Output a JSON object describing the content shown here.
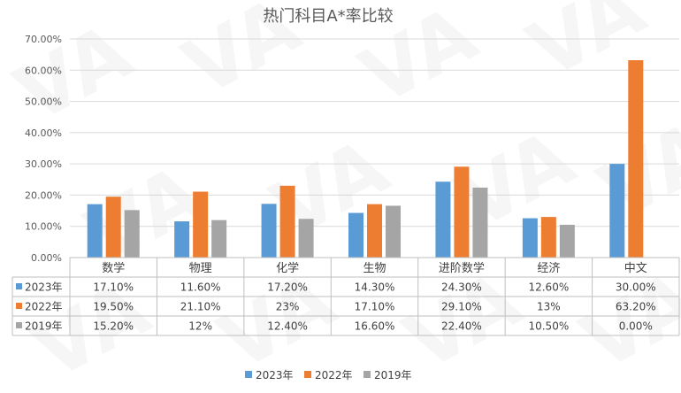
{
  "chart_data": {
    "type": "bar",
    "title": "热门科目A*率比较",
    "categories": [
      "数学",
      "物理",
      "化学",
      "生物",
      "进阶数学",
      "经济",
      "中文"
    ],
    "ylim": [
      0,
      70
    ],
    "y_ticks": [
      "0.00%",
      "10.00%",
      "20.00%",
      "30.00%",
      "40.00%",
      "50.00%",
      "60.00%",
      "70.00%"
    ],
    "grid": true,
    "legend_position": "bottom",
    "series": [
      {
        "name": "2023年",
        "color": "#5b9bd5",
        "values": [
          17.1,
          11.6,
          17.2,
          14.3,
          24.3,
          12.6,
          30.0
        ],
        "labels": [
          "17.10%",
          "11.60%",
          "17.20%",
          "14.30%",
          "24.30%",
          "12.60%",
          "30.00%"
        ]
      },
      {
        "name": "2022年",
        "color": "#ed7d31",
        "values": [
          19.5,
          21.1,
          23.0,
          17.1,
          29.1,
          13.0,
          63.2
        ],
        "labels": [
          "19.50%",
          "21.10%",
          "23%",
          "17.10%",
          "29.10%",
          "13%",
          "63.20%"
        ]
      },
      {
        "name": "2019年",
        "color": "#a5a5a5",
        "values": [
          15.2,
          12.0,
          12.4,
          16.6,
          22.4,
          10.5,
          0.0
        ],
        "labels": [
          "15.20%",
          "12%",
          "12.40%",
          "16.60%",
          "22.40%",
          "10.50%",
          "0.00%"
        ]
      }
    ],
    "watermark": "VA"
  }
}
